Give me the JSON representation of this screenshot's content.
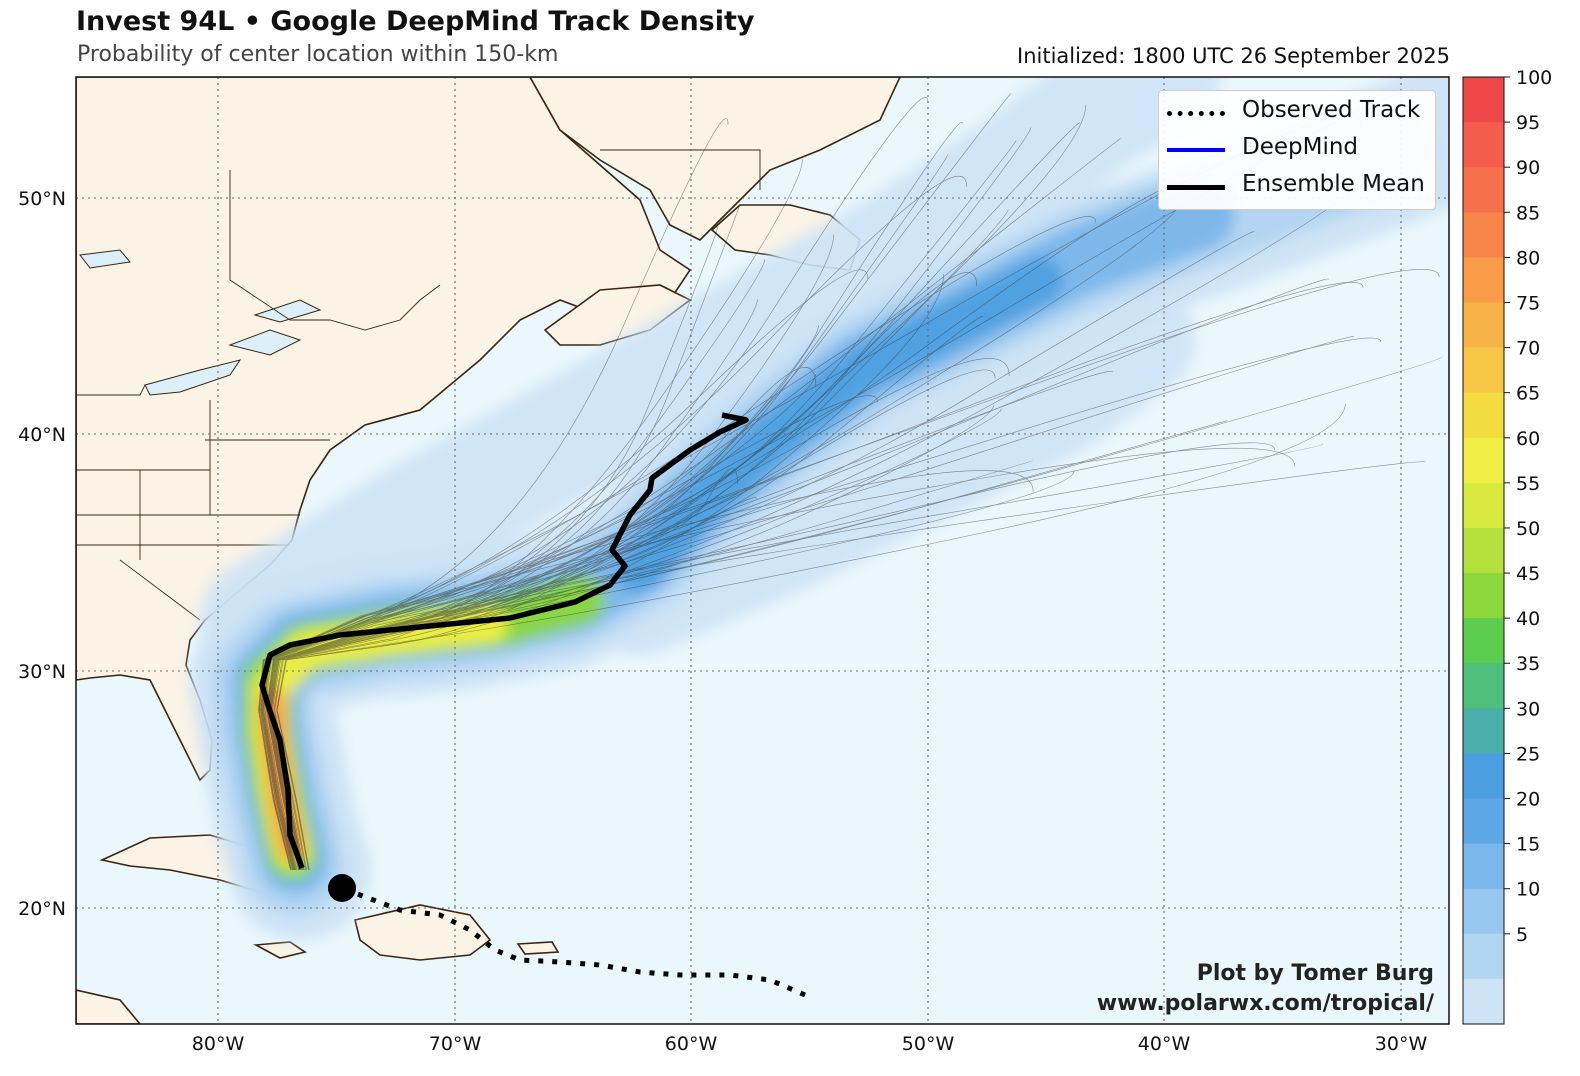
{
  "header": {
    "title": "Invest 94L • Google DeepMind Track Density",
    "subtitle": "Probability of center location within 150-km",
    "initialized": "Initialized: 1800 UTC 26 September 2025"
  },
  "legend": [
    {
      "label": "Observed Track",
      "color": "#000000",
      "style": "dotted"
    },
    {
      "label": "DeepMind",
      "color": "#0000ff",
      "style": "solid"
    },
    {
      "label": "Ensemble Mean",
      "color": "#000000",
      "style": "solid"
    }
  ],
  "axes": {
    "lon_labels": [
      "80°W",
      "70°W",
      "60°W",
      "50°W",
      "40°W",
      "30°W"
    ],
    "lat_labels": [
      "50°N",
      "40°N",
      "30°N",
      "20°N"
    ]
  },
  "colorbar": {
    "labels": [
      "100",
      "95",
      "90",
      "85",
      "80",
      "75",
      "70",
      "65",
      "60",
      "55",
      "50",
      "45",
      "40",
      "35",
      "30",
      "25",
      "20",
      "15",
      "10",
      "5"
    ],
    "colors": [
      "#f04848",
      "#f45c4c",
      "#f5704a",
      "#f7854a",
      "#f89c4a",
      "#f7b248",
      "#f5c744",
      "#f2dc40",
      "#f0ee45",
      "#d9ea3e",
      "#b4df3c",
      "#8bd73c",
      "#5ccc4e",
      "#4fc07b",
      "#4aaeab",
      "#4b9fe0",
      "#5ea7e6",
      "#7bb6ea",
      "#97c6ee",
      "#b2d5f2",
      "#cde3f6"
    ]
  },
  "credit": {
    "line1": "Plot by Tomer Burg",
    "line2": "www.polarwx.com/tropical/"
  },
  "colors": {
    "ocean": "#eaf7fc",
    "land": "#faf3e6",
    "coast": "#3a2412",
    "ensemble_mean": "#000000"
  }
}
